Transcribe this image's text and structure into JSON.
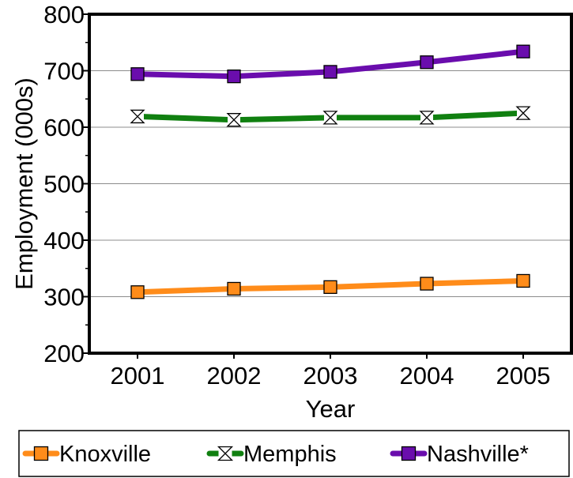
{
  "chart_data": {
    "type": "line",
    "title": "",
    "xlabel": "Year",
    "ylabel": "Employment (000s)",
    "categories": [
      "2001",
      "2002",
      "2003",
      "2004",
      "2005"
    ],
    "ylim": [
      200,
      800
    ],
    "yticks": [
      "200",
      "300",
      "400",
      "500",
      "600",
      "700",
      "800"
    ],
    "grid": "horizontal",
    "legend_position": "bottom",
    "series": [
      {
        "name": "Knoxville",
        "values": [
          308,
          314,
          317,
          323,
          328
        ],
        "color": "#ff8c1a",
        "marker": "square"
      },
      {
        "name": "Memphis",
        "values": [
          619,
          613,
          617,
          617,
          625
        ],
        "color": "#108010",
        "marker": "hourglass"
      },
      {
        "name": "Nashville*",
        "values": [
          694,
          690,
          698,
          715,
          734
        ],
        "color": "#6a0dad",
        "marker": "square"
      }
    ]
  }
}
